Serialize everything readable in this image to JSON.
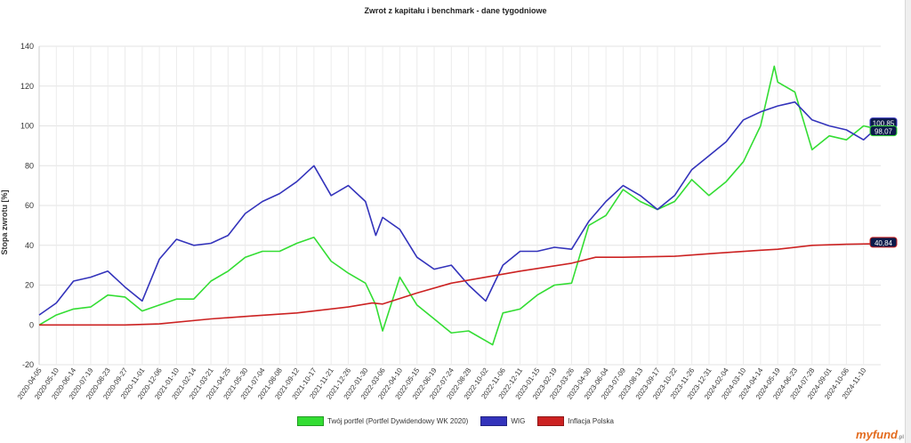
{
  "chart_data": {
    "type": "line",
    "title": "Zwrot z kapitału i benchmark - dane tygodniowe",
    "ylabel": "Stopa zwrotu [%]",
    "ylim": [
      -20,
      140
    ],
    "yticks": [
      "140",
      "120",
      "100",
      "80",
      "60",
      "40",
      "20",
      "0",
      "-20"
    ],
    "ytick_values": [
      140,
      120,
      100,
      80,
      60,
      40,
      20,
      0,
      -20
    ],
    "x_start": "2020-04-05",
    "x_end": "2024-12-15",
    "xticks": [
      "2020-04-05",
      "2020-05-10",
      "2020-06-14",
      "2020-07-19",
      "2020-08-23",
      "2020-09-27",
      "2020-11-01",
      "2020-12-06",
      "2021-01-10",
      "2021-02-14",
      "2021-03-21",
      "2021-04-25",
      "2021-05-30",
      "2021-07-04",
      "2021-08-08",
      "2021-09-12",
      "2021-10-17",
      "2021-11-21",
      "2021-12-26",
      "2022-01-30",
      "2022-03-06",
      "2022-04-10",
      "2022-05-15",
      "2022-06-19",
      "2022-07-24",
      "2022-08-28",
      "2022-10-02",
      "2022-11-06",
      "2022-12-11",
      "2023-01-15",
      "2023-02-19",
      "2023-03-26",
      "2023-04-30",
      "2023-06-04",
      "2023-07-09",
      "2023-08-13",
      "2023-09-17",
      "2023-10-22",
      "2023-11-26",
      "2023-12-31",
      "2024-02-04",
      "2024-03-10",
      "2024-04-14",
      "2024-05-19",
      "2024-06-23",
      "2024-07-28",
      "2024-09-01",
      "2024-10-06",
      "2024-11-10"
    ],
    "grid": true,
    "legend_position": "bottom",
    "series": [
      {
        "name": "Twój portfel (Portfel Dywidendowy WK 2020)",
        "color": "#33dd33",
        "x": [
          "2020-04-05",
          "2020-05-10",
          "2020-06-14",
          "2020-07-19",
          "2020-08-23",
          "2020-09-27",
          "2020-11-01",
          "2020-12-06",
          "2021-01-10",
          "2021-02-14",
          "2021-03-21",
          "2021-04-25",
          "2021-05-30",
          "2021-07-04",
          "2021-08-08",
          "2021-09-12",
          "2021-10-17",
          "2021-11-21",
          "2021-12-26",
          "2022-01-30",
          "2022-02-20",
          "2022-03-06",
          "2022-04-10",
          "2022-05-15",
          "2022-06-19",
          "2022-07-24",
          "2022-08-28",
          "2022-10-02",
          "2022-10-16",
          "2022-11-06",
          "2022-12-11",
          "2023-01-15",
          "2023-02-19",
          "2023-03-26",
          "2023-04-30",
          "2023-06-04",
          "2023-07-09",
          "2023-08-13",
          "2023-09-17",
          "2023-10-22",
          "2023-11-26",
          "2023-12-31",
          "2024-02-04",
          "2024-03-10",
          "2024-04-14",
          "2024-05-12",
          "2024-05-19",
          "2024-06-23",
          "2024-07-28",
          "2024-09-01",
          "2024-10-06",
          "2024-11-10",
          "2024-12-15"
        ],
        "values": [
          0,
          5,
          8,
          9,
          15,
          14,
          7,
          10,
          13,
          13,
          22,
          27,
          34,
          37,
          37,
          41,
          44,
          32,
          26,
          21,
          10,
          -3,
          24,
          10,
          3,
          -4,
          -3,
          -8,
          -10,
          6,
          8,
          15,
          20,
          21,
          50,
          55,
          68,
          62,
          58,
          62,
          73,
          65,
          72,
          82,
          100,
          130,
          122,
          117,
          88,
          95,
          93,
          100,
          98
        ]
      },
      {
        "name": "WIG",
        "color": "#3333bb",
        "x": [
          "2020-04-05",
          "2020-05-10",
          "2020-06-14",
          "2020-07-19",
          "2020-08-23",
          "2020-09-27",
          "2020-11-01",
          "2020-12-06",
          "2021-01-10",
          "2021-02-14",
          "2021-03-21",
          "2021-04-25",
          "2021-05-30",
          "2021-07-04",
          "2021-08-08",
          "2021-09-12",
          "2021-10-17",
          "2021-11-21",
          "2021-12-26",
          "2022-01-30",
          "2022-02-20",
          "2022-03-06",
          "2022-04-10",
          "2022-05-15",
          "2022-06-19",
          "2022-07-24",
          "2022-08-28",
          "2022-10-02",
          "2022-11-06",
          "2022-12-11",
          "2023-01-15",
          "2023-02-19",
          "2023-03-26",
          "2023-04-30",
          "2023-06-04",
          "2023-07-09",
          "2023-08-13",
          "2023-09-17",
          "2023-10-22",
          "2023-11-26",
          "2023-12-31",
          "2024-02-04",
          "2024-03-10",
          "2024-04-14",
          "2024-05-19",
          "2024-06-23",
          "2024-07-28",
          "2024-09-01",
          "2024-10-06",
          "2024-11-10",
          "2024-12-15"
        ],
        "values": [
          5,
          11,
          22,
          24,
          27,
          19,
          12,
          33,
          43,
          40,
          41,
          45,
          56,
          62,
          66,
          72,
          80,
          65,
          70,
          62,
          45,
          54,
          48,
          34,
          28,
          30,
          20,
          12,
          30,
          37,
          37,
          39,
          38,
          52,
          62,
          70,
          65,
          58,
          65,
          78,
          85,
          92,
          103,
          107,
          110,
          112,
          103,
          100,
          98,
          93,
          100.85
        ]
      },
      {
        "name": "Inflacja  Polska",
        "color": "#cc2222",
        "x": [
          "2020-04-05",
          "2020-06-14",
          "2020-09-27",
          "2020-12-06",
          "2021-03-21",
          "2021-06-13",
          "2021-09-12",
          "2021-12-26",
          "2022-02-13",
          "2022-03-06",
          "2022-05-15",
          "2022-07-24",
          "2022-10-02",
          "2022-12-11",
          "2023-03-26",
          "2023-05-14",
          "2023-07-09",
          "2023-10-22",
          "2024-01-14",
          "2024-04-14",
          "2024-05-19",
          "2024-07-28",
          "2024-10-06",
          "2024-12-15"
        ],
        "values": [
          0,
          0,
          0,
          0.5,
          3,
          4.5,
          6,
          9,
          11,
          10.5,
          16,
          21,
          24,
          27,
          31,
          34,
          34,
          34.5,
          36,
          37.5,
          38,
          40,
          40.5,
          40.84
        ]
      }
    ],
    "end_labels": [
      {
        "series": "WIG",
        "text": "100,85",
        "value": 100.85
      },
      {
        "series": "Twój portfel (Portfel Dywidendowy WK 2020)",
        "text": "98,07",
        "value": 98.07
      },
      {
        "series": "Inflacja  Polska",
        "text": "40,84",
        "value": 40.84
      }
    ]
  },
  "logo": {
    "text": "myfund",
    "suffix": "pl"
  }
}
